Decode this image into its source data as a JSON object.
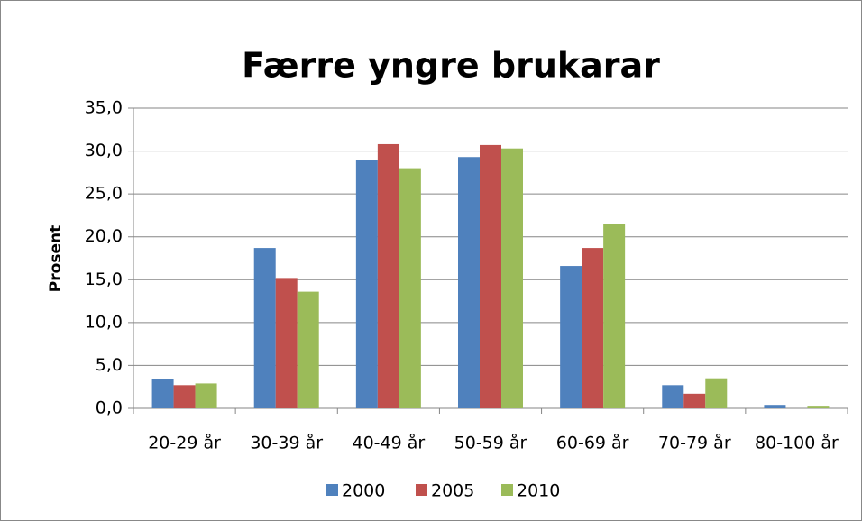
{
  "chart_data": {
    "type": "bar",
    "title": "Færre yngre brukarar",
    "y_label": "Prosent",
    "categories": [
      "20-29 år",
      "30-39 år",
      "40-49 år",
      "50-59 år",
      "60-69 år",
      "70-79 år",
      "80-100 år"
    ],
    "series": [
      {
        "name": "2000",
        "color": "#4f81bd",
        "values": [
          3.4,
          18.7,
          29.0,
          29.3,
          16.6,
          2.7,
          0.4
        ]
      },
      {
        "name": "2005",
        "color": "#c0504d",
        "values": [
          2.7,
          15.2,
          30.8,
          30.7,
          18.7,
          1.7,
          0
        ]
      },
      {
        "name": "2010",
        "color": "#9bbb59",
        "values": [
          2.9,
          13.6,
          28.0,
          30.3,
          21.5,
          3.5,
          0.3
        ]
      }
    ],
    "ylim": [
      0,
      35
    ],
    "yticks": [
      {
        "value": 0,
        "label": "0,0"
      },
      {
        "value": 5,
        "label": "5,0"
      },
      {
        "value": 10,
        "label": "10,0"
      },
      {
        "value": 15,
        "label": "15,0"
      },
      {
        "value": 20,
        "label": "20,0"
      },
      {
        "value": 25,
        "label": "25,0"
      },
      {
        "value": 30,
        "label": "30,0"
      },
      {
        "value": 35,
        "label": "35,0"
      }
    ],
    "grid": true,
    "legend": "bottom"
  }
}
